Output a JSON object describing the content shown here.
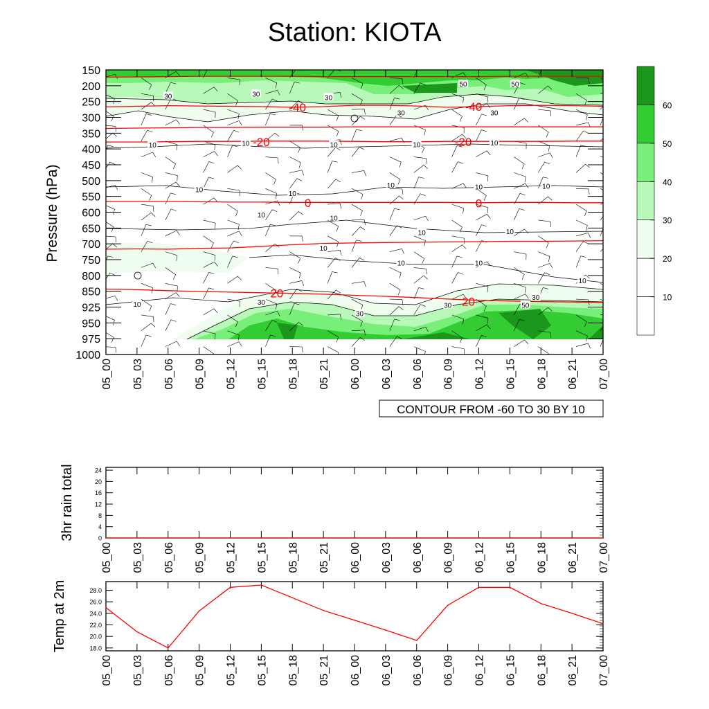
{
  "title": "Station: KIOTA",
  "time_labels": [
    "05_00",
    "05_03",
    "05_06",
    "05_09",
    "05_12",
    "05_15",
    "05_18",
    "05_21",
    "06_00",
    "06_03",
    "06_06",
    "06_09",
    "06_12",
    "06_15",
    "06_18",
    "06_21",
    "07_00"
  ],
  "colors": {
    "temperature_contour": "#ff0000",
    "rh_contour": "#000000",
    "fill_levels": [
      "#ffffff",
      "#ffffff",
      "#eefdee",
      "#b8f8b8",
      "#78ef78",
      "#33cc33",
      "#1b981b"
    ]
  },
  "chart_data": [
    {
      "id": "cross-section",
      "type": "contour",
      "ylabel": "Pressure (hPa)",
      "pressure_levels": [
        150,
        200,
        250,
        300,
        350,
        400,
        450,
        500,
        550,
        600,
        650,
        700,
        750,
        800,
        850,
        925,
        950,
        975,
        1000
      ],
      "ylim": [
        1000,
        150
      ],
      "contour_info": "CONTOUR FROM -60 TO 30 BY 10",
      "temperature_contours": [
        {
          "value": -40,
          "p": [
            267,
            265,
            263,
            264,
            265,
            266,
            268,
            266,
            262,
            262,
            264,
            268,
            266,
            263,
            262,
            263,
            265
          ]
        },
        {
          "value": -20,
          "p": [
            378,
            378,
            377,
            376,
            376,
            375,
            375,
            375,
            376,
            377,
            377,
            376,
            376,
            376,
            376,
            375,
            375
          ]
        },
        {
          "value": 0,
          "p": [
            566,
            566,
            566,
            567,
            568,
            568,
            569,
            569,
            569,
            569,
            569,
            569,
            570,
            569,
            569,
            570,
            570
          ]
        },
        {
          "value": 20,
          "p": [
            843,
            845,
            848,
            851,
            854,
            857,
            860,
            864,
            869,
            874,
            880,
            887,
            893,
            896,
            899,
            901,
            903
          ]
        },
        {
          "value": 40,
          "p": [
            173,
            172,
            171,
            170,
            170,
            170,
            170,
            171,
            171,
            171,
            171,
            171,
            171,
            170,
            170,
            170,
            170
          ]
        },
        {
          "value": -60,
          "p": [
            335,
            334,
            333,
            332,
            332,
            331,
            331,
            331,
            330,
            330,
            330,
            330,
            330,
            330,
            330,
            330,
            330
          ]
        },
        {
          "value": 10,
          "p": [
            717,
            716,
            717,
            714,
            713,
            708,
            703,
            699,
            697,
            696,
            695,
            694,
            693,
            692,
            692,
            691,
            690
          ]
        }
      ],
      "temperature_labels": [
        {
          "text": "-40",
          "t": 18.5,
          "p": 268
        },
        {
          "text": "-40",
          "t": 35.5,
          "p": 266
        },
        {
          "text": "-20",
          "t": 15,
          "p": 378
        },
        {
          "text": "-20",
          "t": 34.5,
          "p": 378
        },
        {
          "text": "0",
          "t": 19.5,
          "p": 570
        },
        {
          "text": "0",
          "t": 36,
          "p": 571
        },
        {
          "text": "20",
          "t": 16.5,
          "p": 860
        },
        {
          "text": "20",
          "t": 35,
          "p": 898
        }
      ],
      "rh_labels": [
        {
          "text": "30",
          "t": 6,
          "p": 232
        },
        {
          "text": "30",
          "t": 14.5,
          "p": 225
        },
        {
          "text": "30",
          "t": 21.5,
          "p": 236
        },
        {
          "text": "50",
          "t": 34.5,
          "p": 194
        },
        {
          "text": "50",
          "t": 39.5,
          "p": 194
        },
        {
          "text": "30",
          "t": 28.5,
          "p": 285
        },
        {
          "text": "30",
          "t": 37.5,
          "p": 285
        },
        {
          "text": "10",
          "t": 4.5,
          "p": 387
        },
        {
          "text": "10",
          "t": 13.5,
          "p": 381
        },
        {
          "text": "10",
          "t": 22,
          "p": 385
        },
        {
          "text": "10",
          "t": 30,
          "p": 385
        },
        {
          "text": "10",
          "t": 37.5,
          "p": 380
        },
        {
          "text": "10",
          "t": 9,
          "p": 528
        },
        {
          "text": "10",
          "t": 18,
          "p": 540
        },
        {
          "text": "10",
          "t": 27.5,
          "p": 513
        },
        {
          "text": "10",
          "t": 36,
          "p": 519
        },
        {
          "text": "10",
          "t": 42.5,
          "p": 517
        },
        {
          "text": "10",
          "t": 15,
          "p": 608
        },
        {
          "text": "10",
          "t": 22,
          "p": 617
        },
        {
          "text": "10",
          "t": 30.5,
          "p": 663
        },
        {
          "text": "10",
          "t": 39,
          "p": 660
        },
        {
          "text": "10",
          "t": 21,
          "p": 713
        },
        {
          "text": "10",
          "t": 28.5,
          "p": 760
        },
        {
          "text": "10",
          "t": 36,
          "p": 760
        },
        {
          "text": "10",
          "t": 46,
          "p": 816
        },
        {
          "text": "10",
          "t": 3,
          "p": 910
        },
        {
          "text": "30",
          "t": 15,
          "p": 901
        },
        {
          "text": "30",
          "t": 24.5,
          "p": 935
        },
        {
          "text": "30",
          "t": 33,
          "p": 915
        },
        {
          "text": "30",
          "t": 41.5,
          "p": 877
        },
        {
          "text": "50",
          "t": 40.5,
          "p": 915
        }
      ],
      "colorbar": {
        "labels": [
          "10",
          "20",
          "30",
          "40",
          "50",
          "60"
        ]
      }
    },
    {
      "id": "rain",
      "type": "line",
      "ylabel": "3hr rain total",
      "yticks": [
        "0",
        "4",
        "8",
        "12",
        "16",
        "20",
        "24"
      ],
      "ylim": [
        0,
        25
      ],
      "values": [
        0,
        0,
        0,
        0,
        0,
        0,
        0,
        0,
        0,
        0,
        0,
        0,
        0,
        0,
        0,
        0,
        0
      ]
    },
    {
      "id": "temp2m",
      "type": "line",
      "ylabel": "Temp at 2m",
      "yticks": [
        "18.0",
        "20.0",
        "22.0",
        "24.0",
        "26.0",
        "28.0"
      ],
      "ylim": [
        17.5,
        29.5
      ],
      "values": [
        25.0,
        20.8,
        18.0,
        24.4,
        28.5,
        28.9,
        26.7,
        24.5,
        22.8,
        21.1,
        19.3,
        25.4,
        28.5,
        28.5,
        25.7,
        24.0,
        22.2
      ]
    }
  ]
}
